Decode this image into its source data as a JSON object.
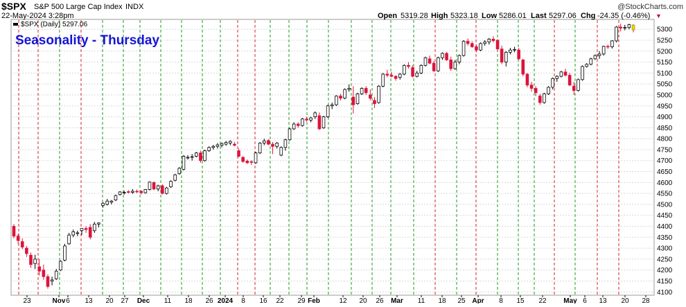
{
  "header": {
    "symbol": "$SPX",
    "name": "S&P 500 Large Cap Index",
    "exchange": "INDX",
    "date_line": "22-May-2024 3:28pm",
    "watermark": "@StockCharts.com",
    "open_label": "Open",
    "open_value": "5319.28",
    "high_label": "High",
    "high_value": "5323.18",
    "low_label": "Low",
    "low_value": "5286.01",
    "last_label": "Last",
    "last_value": "5297.06",
    "chg_label": "Chg",
    "chg_value": "-24.35 (-0.46%)",
    "chg_marker": "▼"
  },
  "legend": {
    "series_label": "$SPX (Daily) 5297.06"
  },
  "overlay_title": "Seasonality - Thursday",
  "colors": {
    "up_fill": "#ffffff",
    "down_fill": "#dc143c",
    "wick": "#000000",
    "title": "#1515d6",
    "green_line": "#1b9a1b",
    "red_line": "#d41f1f",
    "grid": "#d8d8d8",
    "last_candle": "#e6d700"
  },
  "chart_data": {
    "type": "candlestick",
    "title": "Seasonality - Thursday",
    "series_name": "$SPX (Daily)",
    "y_axis_side": "right",
    "ylim": [
      4085,
      5345
    ],
    "y_ticks": [
      4100,
      4150,
      4200,
      4250,
      4300,
      4350,
      4400,
      4450,
      4500,
      4550,
      4600,
      4650,
      4700,
      4750,
      4800,
      4850,
      4900,
      4950,
      5000,
      5050,
      5100,
      5150,
      5200,
      5250,
      5300
    ],
    "x_tick_labels": [
      "23",
      "Nov",
      "6",
      "13",
      "20",
      "27",
      "Dec",
      "11",
      "18",
      "26",
      "2024",
      "8",
      "16",
      "22",
      "29",
      "Feb",
      "12",
      "20",
      "26",
      "Mar",
      "11",
      "18",
      "25",
      "Apr",
      "8",
      "15",
      "22",
      "May",
      "6",
      "13",
      "20",
      "28"
    ],
    "bold_x_tick_labels": [
      "Nov",
      "Dec",
      "2024",
      "Feb",
      "Mar",
      "Apr",
      "May"
    ],
    "first_date": "2023-10-20",
    "last_date": "2024-05-22",
    "vertical_lines_note": "Dashed vertical lines mark Thursdays: green when the S&P 500 closed up that Thursday, red when it closed down.",
    "candles": [
      [
        4400,
        4410,
        4345,
        4355
      ],
      [
        4355,
        4365,
        4320,
        4335
      ],
      [
        4330,
        4345,
        4295,
        4305
      ],
      [
        4300,
        4310,
        4260,
        4275
      ],
      [
        4268,
        4280,
        4210,
        4225
      ],
      [
        4230,
        4270,
        4205,
        4250
      ],
      [
        4215,
        4250,
        4175,
        4195
      ],
      [
        4200,
        4225,
        4155,
        4170
      ],
      [
        4170,
        4180,
        4115,
        4125
      ],
      [
        4150,
        4170,
        4130,
        4155
      ],
      [
        4160,
        4205,
        4155,
        4195
      ],
      [
        4200,
        4245,
        4195,
        4240
      ],
      [
        4245,
        4320,
        4240,
        4310
      ],
      [
        4320,
        4370,
        4315,
        4360
      ],
      [
        4360,
        4385,
        4350,
        4375
      ],
      [
        4370,
        4380,
        4355,
        4370
      ],
      [
        4380,
        4390,
        4360,
        4390
      ],
      [
        4390,
        4400,
        4370,
        4385
      ],
      [
        4395,
        4410,
        4340,
        4350
      ],
      [
        4380,
        4420,
        4370,
        4410
      ],
      [
        4410,
        4418,
        4395,
        4415
      ],
      [
        4495,
        4510,
        4485,
        4505
      ],
      [
        4500,
        4525,
        4495,
        4515
      ],
      [
        4510,
        4520,
        4500,
        4515
      ],
      [
        4520,
        4545,
        4515,
        4540
      ],
      [
        4545,
        4560,
        4540,
        4557
      ],
      [
        4555,
        4562,
        4545,
        4555
      ],
      [
        4558,
        4565,
        4550,
        4556
      ],
      [
        4555,
        4570,
        4548,
        4560
      ],
      [
        4560,
        4568,
        4552,
        4558
      ],
      [
        4560,
        4565,
        4545,
        4553
      ],
      [
        4553,
        4570,
        4550,
        4568
      ],
      [
        4568,
        4605,
        4563,
        4602
      ],
      [
        4600,
        4605,
        4565,
        4570
      ],
      [
        4570,
        4590,
        4560,
        4585
      ],
      [
        4585,
        4592,
        4545,
        4550
      ],
      [
        4550,
        4580,
        4545,
        4575
      ],
      [
        4580,
        4610,
        4575,
        4605
      ],
      [
        4610,
        4640,
        4605,
        4635
      ],
      [
        4640,
        4670,
        4635,
        4665
      ],
      [
        4660,
        4725,
        4655,
        4720
      ],
      [
        4715,
        4725,
        4705,
        4715
      ],
      [
        4715,
        4730,
        4700,
        4718
      ],
      [
        4720,
        4740,
        4715,
        4735
      ],
      [
        4735,
        4745,
        4690,
        4700
      ],
      [
        4700,
        4750,
        4695,
        4745
      ],
      [
        4745,
        4765,
        4740,
        4760
      ],
      [
        4760,
        4772,
        4750,
        4765
      ],
      [
        4765,
        4780,
        4755,
        4772
      ],
      [
        4770,
        4783,
        4760,
        4778
      ],
      [
        4775,
        4790,
        4768,
        4783
      ],
      [
        4780,
        4793,
        4770,
        4788
      ],
      [
        4775,
        4785,
        4765,
        4770
      ],
      [
        4745,
        4755,
        4715,
        4720
      ],
      [
        4715,
        4720,
        4690,
        4696
      ],
      [
        4698,
        4705,
        4685,
        4690
      ],
      [
        4695,
        4702,
        4680,
        4692
      ],
      [
        4690,
        4740,
        4685,
        4735
      ],
      [
        4735,
        4785,
        4730,
        4780
      ],
      [
        4780,
        4800,
        4770,
        4790
      ],
      [
        4792,
        4798,
        4770,
        4775
      ],
      [
        4775,
        4785,
        4730,
        4765
      ],
      [
        4765,
        4785,
        4755,
        4780
      ],
      [
        4725,
        4765,
        4720,
        4760
      ],
      [
        4760,
        4800,
        4745,
        4795
      ],
      [
        4795,
        4850,
        4790,
        4845
      ],
      [
        4845,
        4875,
        4840,
        4867
      ],
      [
        4867,
        4875,
        4850,
        4860
      ],
      [
        4860,
        4895,
        4855,
        4890
      ],
      [
        4890,
        4900,
        4878,
        4885
      ],
      [
        4885,
        4900,
        4875,
        4895
      ],
      [
        4900,
        4925,
        4890,
        4918
      ],
      [
        4905,
        4920,
        4840,
        4845
      ],
      [
        4850,
        4905,
        4845,
        4900
      ],
      [
        4900,
        4955,
        4895,
        4950
      ],
      [
        4950,
        4965,
        4935,
        4955
      ],
      [
        4955,
        4998,
        4950,
        4995
      ],
      [
        4995,
        5005,
        4975,
        4985
      ],
      [
        4985,
        5030,
        4980,
        5025
      ],
      [
        5025,
        5048,
        5015,
        5030
      ],
      [
        4990,
        5040,
        4915,
        4955
      ],
      [
        4960,
        5010,
        4955,
        5005
      ],
      [
        5005,
        5035,
        5000,
        5030
      ],
      [
        5030,
        5040,
        5000,
        5010
      ],
      [
        5000,
        5025,
        4975,
        4985
      ],
      [
        4975,
        4990,
        4940,
        4960
      ],
      [
        4965,
        5045,
        4960,
        5040
      ],
      [
        5040,
        5100,
        5035,
        5095
      ],
      [
        5095,
        5115,
        5080,
        5090
      ],
      [
        5090,
        5105,
        5080,
        5085
      ],
      [
        5085,
        5090,
        5065,
        5075
      ],
      [
        5080,
        5100,
        5070,
        5095
      ],
      [
        5095,
        5140,
        5090,
        5135
      ],
      [
        5135,
        5150,
        5120,
        5130
      ],
      [
        5125,
        5135,
        5080,
        5085
      ],
      [
        5085,
        5110,
        5080,
        5100
      ],
      [
        5100,
        5140,
        5095,
        5135
      ],
      [
        5135,
        5175,
        5130,
        5170
      ],
      [
        5165,
        5180,
        5140,
        5145
      ],
      [
        5145,
        5155,
        5105,
        5110
      ],
      [
        5110,
        5175,
        5105,
        5170
      ],
      [
        5170,
        5195,
        5160,
        5190
      ],
      [
        5190,
        5196,
        5155,
        5160
      ],
      [
        5160,
        5175,
        5110,
        5120
      ],
      [
        5120,
        5160,
        5115,
        5150
      ],
      [
        5150,
        5185,
        5140,
        5180
      ],
      [
        5180,
        5250,
        5175,
        5245
      ],
      [
        5245,
        5258,
        5225,
        5235
      ],
      [
        5235,
        5245,
        5215,
        5220
      ],
      [
        5220,
        5230,
        5195,
        5205
      ],
      [
        5205,
        5240,
        5200,
        5235
      ],
      [
        5235,
        5250,
        5225,
        5242
      ],
      [
        5242,
        5260,
        5230,
        5255
      ],
      [
        5255,
        5268,
        5240,
        5248
      ],
      [
        5250,
        5255,
        5200,
        5210
      ],
      [
        5210,
        5225,
        5140,
        5150
      ],
      [
        5150,
        5200,
        5130,
        5195
      ],
      [
        5195,
        5215,
        5185,
        5205
      ],
      [
        5205,
        5220,
        5195,
        5208
      ],
      [
        5205,
        5215,
        5160,
        5165
      ],
      [
        5160,
        5165,
        5085,
        5095
      ],
      [
        5095,
        5100,
        5035,
        5045
      ],
      [
        5045,
        5060,
        5015,
        5030
      ],
      [
        5030,
        5040,
        4995,
        5010
      ],
      [
        4995,
        5005,
        4955,
        4965
      ],
      [
        4965,
        5010,
        4960,
        5005
      ],
      [
        5005,
        5040,
        5000,
        5035
      ],
      [
        5035,
        5080,
        5025,
        5075
      ],
      [
        5075,
        5090,
        5060,
        5085
      ],
      [
        5085,
        5110,
        5080,
        5105
      ],
      [
        5105,
        5120,
        5085,
        5090
      ],
      [
        5090,
        5100,
        5040,
        5045
      ],
      [
        5040,
        5060,
        5000,
        5020
      ],
      [
        5020,
        5075,
        5015,
        5070
      ],
      [
        5070,
        5135,
        5065,
        5130
      ],
      [
        5130,
        5145,
        5125,
        5140
      ],
      [
        5140,
        5170,
        5135,
        5165
      ],
      [
        5165,
        5185,
        5160,
        5180
      ],
      [
        5180,
        5200,
        5165,
        5187
      ],
      [
        5187,
        5225,
        5180,
        5222
      ],
      [
        5222,
        5230,
        5210,
        5220
      ],
      [
        5220,
        5250,
        5212,
        5247
      ],
      [
        5247,
        5315,
        5240,
        5310
      ],
      [
        5310,
        5325,
        5290,
        5305
      ],
      [
        5305,
        5320,
        5295,
        5308
      ],
      [
        5308,
        5325,
        5300,
        5321
      ],
      [
        5319,
        5323,
        5286,
        5297
      ]
    ]
  }
}
